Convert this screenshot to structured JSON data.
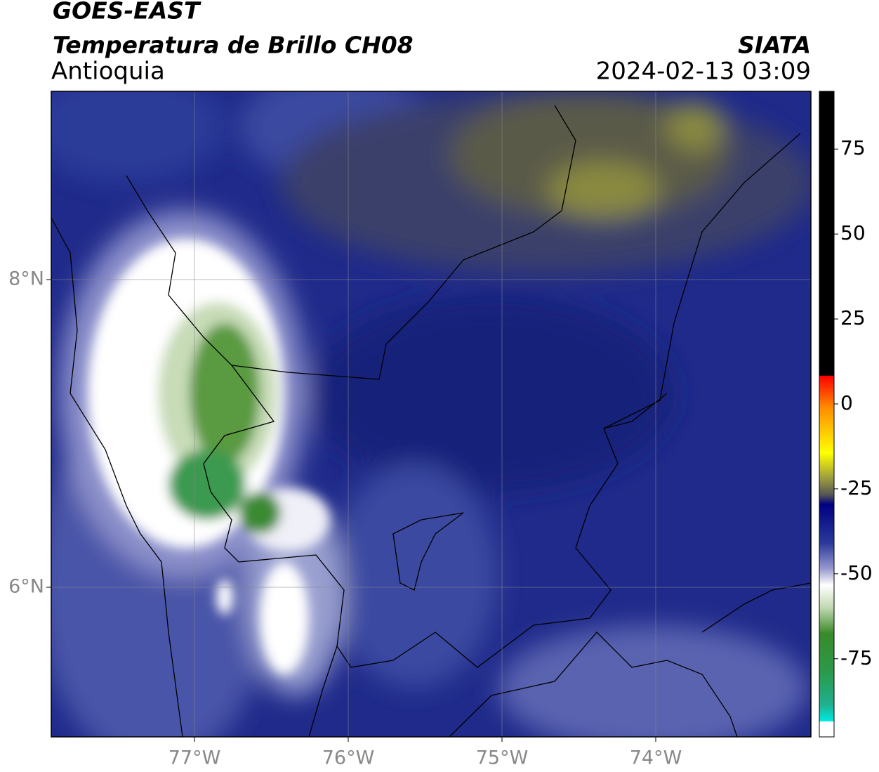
{
  "header": {
    "title": "GOES-EAST",
    "subtitle": "Temperatura de Brillo CH08",
    "region": "Antioquia",
    "source": "SIATA",
    "datetime": "2024-02-13 03:09"
  },
  "map": {
    "lat_labels": [
      "8°N",
      "6°N"
    ],
    "lon_labels": [
      "77°W",
      "76°W",
      "75°W",
      "74°W"
    ]
  },
  "colorbar": {
    "lim": [
      -98,
      92
    ],
    "ticks": [
      75,
      50,
      25,
      0,
      -25,
      -50,
      -75
    ]
  }
}
